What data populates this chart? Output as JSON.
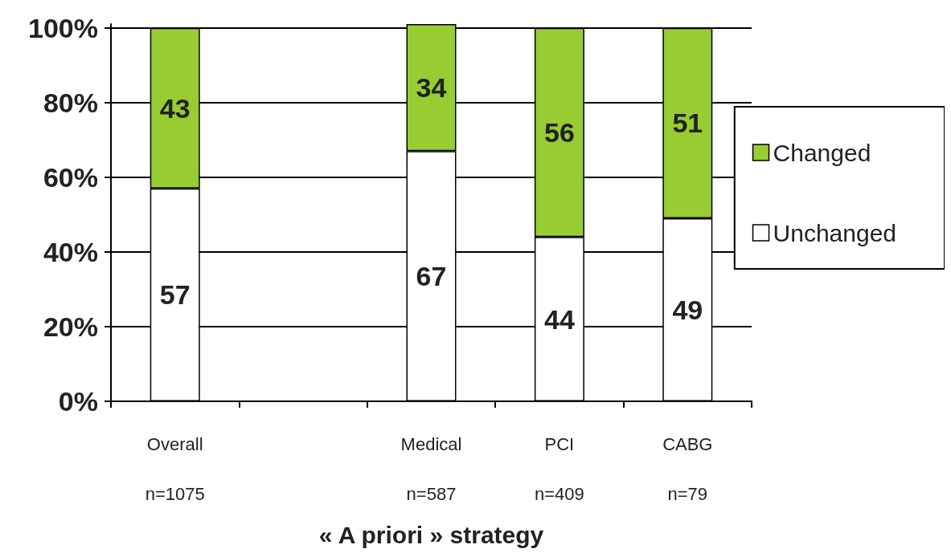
{
  "chart_data": {
    "type": "bar",
    "stacked": true,
    "xlabel": "« A priori » strategy",
    "categories": [
      "Overall\nn=1075",
      null,
      "Medical\nn=587",
      "PCI\nn=409",
      "CABG\nn=79"
    ],
    "series": [
      {
        "name": "Unchanged",
        "color": "#ffffff",
        "values": [
          57,
          null,
          67,
          44,
          49
        ]
      },
      {
        "name": "Changed",
        "color": "#99cc33",
        "values": [
          43,
          null,
          34,
          56,
          51
        ]
      }
    ],
    "ylim": [
      0,
      101
    ],
    "yticks": [
      {
        "value": 0,
        "label": "0%"
      },
      {
        "value": 20,
        "label": "20%"
      },
      {
        "value": 40,
        "label": "40%"
      },
      {
        "value": 60,
        "label": "60%"
      },
      {
        "value": 80,
        "label": "80%"
      },
      {
        "value": 100,
        "label": "100%"
      }
    ],
    "grid": "y",
    "legend": "right",
    "data_labels": true
  }
}
